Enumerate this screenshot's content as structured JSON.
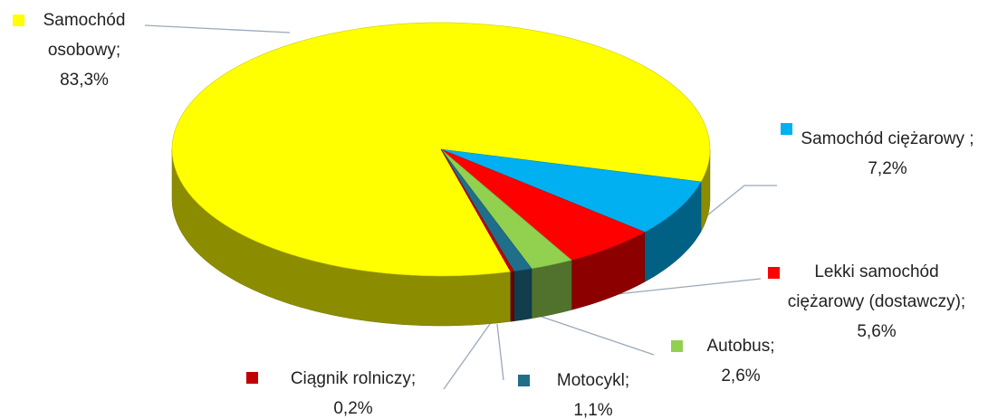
{
  "chart_data": {
    "type": "pie",
    "categories": [
      "Samochód osobowy;",
      "Samochód ciężarowy ;",
      "Lekki samochód ciężarowy (dostawczy);",
      "Autobus;",
      "Motocykl;",
      "Ciągnik rolniczy;"
    ],
    "values": [
      83.3,
      7.2,
      5.6,
      2.6,
      1.1,
      0.2
    ],
    "value_labels": [
      "83,3%",
      "7,2%",
      "5,6%",
      "2,6%",
      "1,1%",
      "0,2%"
    ],
    "colors": [
      "#ffff00",
      "#00b0f0",
      "#ff0000",
      "#92d050",
      "#1f6f8b",
      "#c00000"
    ]
  }
}
